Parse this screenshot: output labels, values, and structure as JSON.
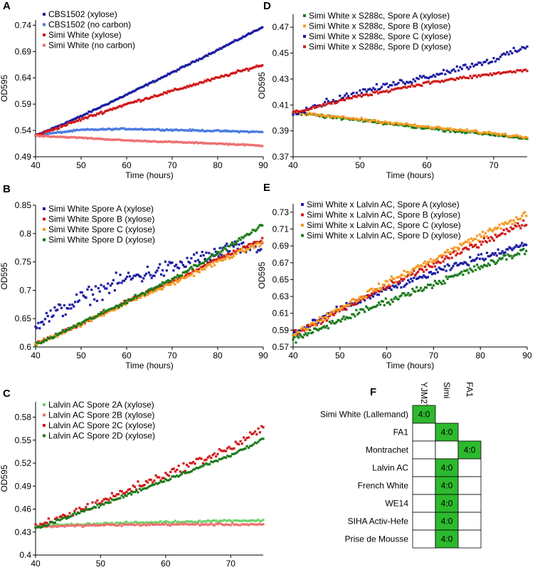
{
  "chart_data": [
    {
      "panel": "A",
      "type": "scatter",
      "xlabel": "Time (hours)",
      "ylabel": "OD595",
      "xlim": [
        40,
        90
      ],
      "ylim": [
        0.49,
        0.75
      ],
      "xticks": [
        "40",
        "50",
        "60",
        "70",
        "80",
        "90"
      ],
      "yticks": [
        "0.49",
        "0.54",
        "0.59",
        "0.64",
        "0.69",
        "0.74"
      ],
      "legend_position": "top-left",
      "series": [
        {
          "name": "CBS1502 (xylose)",
          "color": "#1a1aa0",
          "x": [
            40,
            50,
            60,
            70,
            80,
            90
          ],
          "y": [
            0.53,
            0.567,
            0.608,
            0.65,
            0.693,
            0.737
          ]
        },
        {
          "name": "CBS1502 (no carbon)",
          "color": "#4a7be0",
          "x": [
            40,
            50,
            60,
            70,
            80,
            90
          ],
          "y": [
            0.531,
            0.541,
            0.543,
            0.541,
            0.539,
            0.537
          ]
        },
        {
          "name": "Simi White (xylose)",
          "color": "#d01818",
          "x": [
            40,
            50,
            60,
            70,
            80,
            90
          ],
          "y": [
            0.53,
            0.561,
            0.59,
            0.615,
            0.64,
            0.665
          ]
        },
        {
          "name": "Simi White (no carbon)",
          "color": "#ee7070",
          "x": [
            40,
            50,
            60,
            70,
            80,
            90
          ],
          "y": [
            0.53,
            0.526,
            0.521,
            0.518,
            0.515,
            0.511
          ]
        }
      ]
    },
    {
      "panel": "B",
      "type": "scatter",
      "xlabel": "Time (hours)",
      "ylabel": "OD595",
      "xlim": [
        40,
        90
      ],
      "ylim": [
        0.6,
        0.85
      ],
      "xticks": [
        "40",
        "50",
        "60",
        "70",
        "80",
        "90"
      ],
      "yticks": [
        "0.6",
        "0.65",
        "0.7",
        "0.75",
        "0.8",
        "0.85"
      ],
      "legend_position": "top-left",
      "series": [
        {
          "name": "Simi White Spore A (xylose)",
          "color": "#1a1aa0",
          "x": [
            40,
            50,
            60,
            70,
            80,
            90
          ],
          "y": [
            0.64,
            0.685,
            0.72,
            0.74,
            0.765,
            0.78
          ]
        },
        {
          "name": "Simi White Spore B (xylose)",
          "color": "#d01818",
          "x": [
            40,
            50,
            60,
            70,
            80,
            90
          ],
          "y": [
            0.605,
            0.64,
            0.68,
            0.715,
            0.755,
            0.79
          ]
        },
        {
          "name": "Simi White Spore C (xylose)",
          "color": "#f49a20",
          "x": [
            40,
            50,
            60,
            70,
            80,
            90
          ],
          "y": [
            0.605,
            0.64,
            0.678,
            0.712,
            0.75,
            0.785
          ]
        },
        {
          "name": "Simi White Spore D (xylose)",
          "color": "#1a7a1a",
          "x": [
            40,
            50,
            60,
            70,
            80,
            90
          ],
          "y": [
            0.603,
            0.642,
            0.68,
            0.72,
            0.765,
            0.815
          ]
        }
      ]
    },
    {
      "panel": "C",
      "type": "scatter",
      "xlabel": "Time (hours)",
      "ylabel": "OD595",
      "xlim": [
        40,
        75
      ],
      "ylim": [
        0.4,
        0.6
      ],
      "xticks": [
        "40",
        "50",
        "60",
        "70"
      ],
      "yticks": [
        "0.4",
        "0.43",
        "0.46",
        "0.49",
        "0.52",
        "0.55",
        "0.58"
      ],
      "legend_position": "top-left",
      "series": [
        {
          "name": "Lalvin AC Spore 2A (xylose)",
          "color": "#6ad46a",
          "x": [
            40,
            50,
            60,
            70,
            75
          ],
          "y": [
            0.438,
            0.441,
            0.443,
            0.445,
            0.445
          ]
        },
        {
          "name": "Lalvin AC Spore 2B (xylose)",
          "color": "#ee7070",
          "x": [
            40,
            50,
            60,
            70,
            75
          ],
          "y": [
            0.437,
            0.439,
            0.44,
            0.44,
            0.44
          ]
        },
        {
          "name": "Lalvin AC Spore 2C (xylose)",
          "color": "#d01818",
          "x": [
            40,
            50,
            60,
            70,
            75
          ],
          "y": [
            0.435,
            0.47,
            0.505,
            0.54,
            0.565
          ]
        },
        {
          "name": "Lalvin AC Spore 2D (xylose)",
          "color": "#1a7a1a",
          "x": [
            40,
            50,
            60,
            70,
            75
          ],
          "y": [
            0.435,
            0.465,
            0.498,
            0.53,
            0.552
          ]
        }
      ]
    },
    {
      "panel": "D",
      "type": "scatter",
      "xlabel": "Time (hours)",
      "ylabel": "OD595",
      "xlim": [
        40,
        75
      ],
      "ylim": [
        0.37,
        0.48
      ],
      "xticks": [
        "40",
        "50",
        "60",
        "70"
      ],
      "yticks": [
        "0.37",
        "0.39",
        "0.41",
        "0.43",
        "0.45",
        "0.47"
      ],
      "legend_position": "top-left",
      "series": [
        {
          "name": "Simi White x S288c, Spore A (xylose)",
          "color": "#1a7a1a",
          "x": [
            40,
            50,
            60,
            70,
            75
          ],
          "y": [
            0.404,
            0.398,
            0.392,
            0.387,
            0.384
          ]
        },
        {
          "name": "Simi White x S288c, Spore B (xylose)",
          "color": "#f49a20",
          "x": [
            40,
            50,
            60,
            70,
            75
          ],
          "y": [
            0.404,
            0.399,
            0.393,
            0.388,
            0.385
          ]
        },
        {
          "name": "Simi White x S288c, Spore C (xylose)",
          "color": "#1a1aa0",
          "x": [
            40,
            50,
            60,
            70,
            75
          ],
          "y": [
            0.404,
            0.42,
            0.432,
            0.445,
            0.455
          ]
        },
        {
          "name": "Simi White x S288c, Spore D (xylose)",
          "color": "#d01818",
          "x": [
            40,
            50,
            60,
            70,
            75
          ],
          "y": [
            0.404,
            0.417,
            0.427,
            0.434,
            0.437
          ]
        }
      ]
    },
    {
      "panel": "E",
      "type": "scatter",
      "xlabel": "Time (hours)",
      "ylabel": "OD595",
      "xlim": [
        40,
        90
      ],
      "ylim": [
        0.57,
        0.74
      ],
      "xticks": [
        "40",
        "50",
        "60",
        "70",
        "80",
        "90"
      ],
      "yticks": [
        "0.57",
        "0.59",
        "0.61",
        "0.63",
        "0.65",
        "0.67",
        "0.69",
        "0.71",
        "0.73"
      ],
      "legend_position": "top-left",
      "series": [
        {
          "name": "Simi White x Lalvin AC, Spore A (xylose)",
          "color": "#1a1aa0",
          "x": [
            40,
            50,
            60,
            70,
            80,
            90
          ],
          "y": [
            0.585,
            0.615,
            0.638,
            0.658,
            0.676,
            0.693
          ]
        },
        {
          "name": "Simi White x Lalvin AC, Spore B (xylose)",
          "color": "#d01818",
          "x": [
            40,
            50,
            60,
            70,
            80,
            90
          ],
          "y": [
            0.584,
            0.613,
            0.642,
            0.668,
            0.694,
            0.718
          ]
        },
        {
          "name": "Simi White x Lalvin AC, Spore C (xylose)",
          "color": "#f49a20",
          "x": [
            40,
            50,
            60,
            70,
            80,
            90
          ],
          "y": [
            0.584,
            0.616,
            0.646,
            0.674,
            0.702,
            0.728
          ]
        },
        {
          "name": "Simi White x Lalvin AC, Spore D (xylose)",
          "color": "#1a7a1a",
          "x": [
            40,
            50,
            60,
            70,
            80,
            90
          ],
          "y": [
            0.578,
            0.602,
            0.624,
            0.645,
            0.665,
            0.685
          ]
        }
      ]
    },
    {
      "panel": "F",
      "type": "table",
      "columns": [
        "YJM270",
        "Simi",
        "FA1"
      ],
      "rows": [
        "Simi White (Lallemand)",
        "FA1",
        "Montrachet",
        "Lalvin AC",
        "French White",
        "WE14",
        "SIHA Activ-Hefe",
        "Prise de Mousse"
      ],
      "cells": [
        [
          "4:0",
          "",
          ""
        ],
        [
          "",
          "4:0",
          ""
        ],
        [
          "",
          "",
          "4:0"
        ],
        [
          "",
          "4:0",
          ""
        ],
        [
          "",
          "4:0",
          ""
        ],
        [
          "",
          "4:0",
          ""
        ],
        [
          "",
          "4:0",
          ""
        ],
        [
          "",
          "4:0",
          ""
        ]
      ],
      "highlight_color": "#2db92d"
    }
  ]
}
